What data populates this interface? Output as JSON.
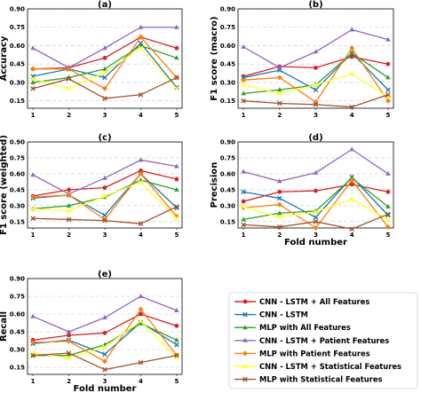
{
  "x_ticks": [
    "1",
    "2",
    "3",
    "4",
    "5"
  ],
  "y_ticks": [
    "0.15",
    "0.30",
    "0.45",
    "0.60",
    "0.75",
    "0.90"
  ],
  "colors": [
    "#d62728",
    "#1f77b4",
    "#2ca02c",
    "#9467bd",
    "#ff7f0e",
    "#ffff33",
    "#a0522d"
  ],
  "legend": [
    "CNN - LSTM + All Features",
    "CNN - LSTM",
    "MLP with All Features",
    "CNN - LSTM + Patient Features",
    "MLP with Patient Features",
    "CNN - LSTM + Statistical Features",
    "MLP with Statistical Features"
  ],
  "chart_data": [
    {
      "type": "line",
      "title": "(a)",
      "ylabel": "Accuracy",
      "xlabel": "",
      "x": [
        1,
        2,
        3,
        4,
        5
      ],
      "ylim": [
        0.09,
        0.9
      ],
      "series": [
        {
          "name": "CNN - LSTM + All Features",
          "values": [
            0.41,
            0.42,
            0.5,
            0.67,
            0.58
          ]
        },
        {
          "name": "CNN - LSTM",
          "values": [
            0.35,
            0.41,
            0.34,
            0.62,
            0.26
          ]
        },
        {
          "name": "MLP with All Features",
          "values": [
            0.3,
            0.34,
            0.41,
            0.6,
            0.5
          ]
        },
        {
          "name": "CNN - LSTM + Patient Features",
          "values": [
            0.58,
            0.42,
            0.58,
            0.75,
            0.75
          ]
        },
        {
          "name": "MLP with Patient Features",
          "values": [
            0.41,
            0.41,
            0.25,
            0.67,
            0.34
          ]
        },
        {
          "name": "CNN - LSTM + Statistical Features",
          "values": [
            0.33,
            0.25,
            0.38,
            0.58,
            0.25
          ]
        },
        {
          "name": "MLP with Statistical Features",
          "values": [
            0.25,
            0.33,
            0.17,
            0.2,
            0.34
          ]
        }
      ]
    },
    {
      "type": "line",
      "title": "(b)",
      "ylabel": "F1 score (macro)",
      "xlabel": "",
      "x": [
        1,
        2,
        3,
        4,
        5
      ],
      "ylim": [
        0.09,
        0.9
      ],
      "series": [
        {
          "name": "CNN - LSTM + All Features",
          "values": [
            0.35,
            0.43,
            0.42,
            0.51,
            0.45
          ]
        },
        {
          "name": "CNN - LSTM",
          "values": [
            0.34,
            0.4,
            0.24,
            0.54,
            0.24
          ]
        },
        {
          "name": "MLP with All Features",
          "values": [
            0.21,
            0.24,
            0.28,
            0.54,
            0.34
          ]
        },
        {
          "name": "CNN - LSTM + Patient Features",
          "values": [
            0.59,
            0.42,
            0.55,
            0.73,
            0.65
          ]
        },
        {
          "name": "MLP with Patient Features",
          "values": [
            0.32,
            0.34,
            0.14,
            0.58,
            0.15
          ]
        },
        {
          "name": "CNN - LSTM + Statistical Features",
          "values": [
            0.28,
            0.21,
            0.28,
            0.37,
            0.18
          ]
        },
        {
          "name": "MLP with Statistical Features",
          "values": [
            0.15,
            0.13,
            0.12,
            0.1,
            0.2
          ]
        }
      ]
    },
    {
      "type": "line",
      "title": "(c)",
      "ylabel": "F1 score (weighted)",
      "xlabel": "",
      "x": [
        1,
        2,
        3,
        4,
        5
      ],
      "ylim": [
        0.09,
        0.9
      ],
      "series": [
        {
          "name": "CNN - LSTM + All Features",
          "values": [
            0.39,
            0.45,
            0.47,
            0.63,
            0.55
          ]
        },
        {
          "name": "CNN - LSTM",
          "values": [
            0.37,
            0.4,
            0.21,
            0.6,
            0.28
          ]
        },
        {
          "name": "MLP with All Features",
          "values": [
            0.27,
            0.3,
            0.38,
            0.54,
            0.45
          ]
        },
        {
          "name": "CNN - LSTM + Patient Features",
          "values": [
            0.59,
            0.41,
            0.56,
            0.73,
            0.67
          ]
        },
        {
          "name": "MLP with Patient Features",
          "values": [
            0.38,
            0.4,
            0.17,
            0.6,
            0.2
          ]
        },
        {
          "name": "CNN - LSTM + Statistical Features",
          "values": [
            0.27,
            0.25,
            0.39,
            0.52,
            0.18
          ]
        },
        {
          "name": "MLP with Statistical Features",
          "values": [
            0.18,
            0.17,
            0.16,
            0.13,
            0.29
          ]
        }
      ]
    },
    {
      "type": "line",
      "title": "(d)",
      "ylabel": "Precision",
      "xlabel": "Fold number",
      "x": [
        1,
        2,
        3,
        4,
        5
      ],
      "ylim": [
        0.09,
        0.9
      ],
      "series": [
        {
          "name": "CNN - LSTM + All Features",
          "values": [
            0.34,
            0.43,
            0.44,
            0.5,
            0.43
          ]
        },
        {
          "name": "CNN - LSTM",
          "values": [
            0.43,
            0.37,
            0.19,
            0.57,
            0.21
          ]
        },
        {
          "name": "MLP with All Features",
          "values": [
            0.17,
            0.23,
            0.25,
            0.56,
            0.29
          ]
        },
        {
          "name": "CNN - LSTM + Patient Features",
          "values": [
            0.62,
            0.53,
            0.61,
            0.83,
            0.6
          ]
        },
        {
          "name": "MLP with Patient Features",
          "values": [
            0.28,
            0.31,
            0.09,
            0.54,
            0.1
          ]
        },
        {
          "name": "CNN - LSTM + Statistical Features",
          "values": [
            0.29,
            0.19,
            0.24,
            0.36,
            0.17
          ]
        },
        {
          "name": "MLP with Statistical Features",
          "values": [
            0.12,
            0.1,
            0.15,
            0.08,
            0.22
          ]
        }
      ]
    },
    {
      "type": "line",
      "title": "(e)",
      "ylabel": "Recall",
      "xlabel": "Fold number",
      "x": [
        1,
        2,
        3,
        4,
        5
      ],
      "ylim": [
        0.09,
        0.9
      ],
      "series": [
        {
          "name": "CNN - LSTM + All Features",
          "values": [
            0.38,
            0.42,
            0.44,
            0.6,
            0.5
          ]
        },
        {
          "name": "CNN - LSTM",
          "values": [
            0.35,
            0.38,
            0.26,
            0.53,
            0.34
          ]
        },
        {
          "name": "MLP with All Features",
          "values": [
            0.25,
            0.25,
            0.34,
            0.52,
            0.38
          ]
        },
        {
          "name": "CNN - LSTM + Patient Features",
          "values": [
            0.58,
            0.45,
            0.57,
            0.75,
            0.63
          ]
        },
        {
          "name": "MLP with Patient Features",
          "values": [
            0.36,
            0.37,
            0.2,
            0.64,
            0.25
          ]
        },
        {
          "name": "CNN - LSTM + Statistical Features",
          "values": [
            0.27,
            0.23,
            0.32,
            0.54,
            0.23
          ]
        },
        {
          "name": "MLP with Statistical Features",
          "values": [
            0.25,
            0.27,
            0.13,
            0.19,
            0.25
          ]
        }
      ]
    }
  ]
}
